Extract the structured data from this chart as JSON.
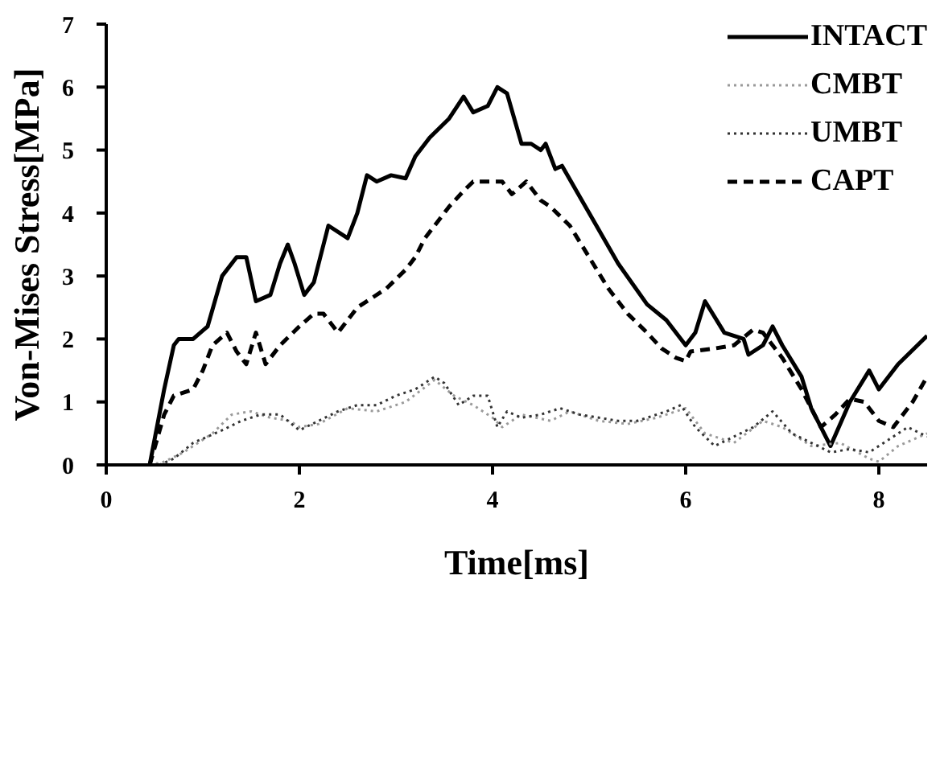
{
  "chart_data": {
    "type": "line",
    "xlabel": "Time[ms]",
    "ylabel": "Von-Mises Stress[MPa]",
    "xlim": [
      0,
      8.5
    ],
    "xticks": [
      0,
      2,
      4,
      6,
      8
    ],
    "ylim": [
      0,
      7
    ],
    "yticks": [
      0,
      1,
      2,
      3,
      4,
      5,
      6,
      7
    ],
    "legend": "top right",
    "marker": "none",
    "series": [
      {
        "name": "INTACT",
        "color": "#000000",
        "line_style": "solid",
        "x": [
          0.45,
          0.6,
          0.7,
          0.75,
          0.9,
          1.05,
          1.2,
          1.35,
          1.45,
          1.55,
          1.7,
          1.8,
          1.88,
          1.95,
          2.05,
          2.15,
          2.25,
          2.3,
          2.5,
          2.6,
          2.7,
          2.8,
          2.95,
          3.1,
          3.2,
          3.35,
          3.55,
          3.7,
          3.8,
          3.95,
          4.05,
          4.15,
          4.3,
          4.4,
          4.5,
          4.55,
          4.65,
          4.72,
          5.0,
          5.3,
          5.6,
          5.8,
          6.0,
          6.1,
          6.2,
          6.4,
          6.6,
          6.65,
          6.8,
          6.9,
          7.0,
          7.2,
          7.3,
          7.5,
          7.7,
          7.9,
          8.0,
          8.2,
          8.5
        ],
        "values": [
          0,
          1.2,
          1.9,
          2.0,
          2.0,
          2.2,
          3.0,
          3.3,
          3.3,
          2.6,
          2.7,
          3.2,
          3.5,
          3.2,
          2.7,
          2.9,
          3.5,
          3.8,
          3.6,
          4.0,
          4.6,
          4.5,
          4.6,
          4.55,
          4.9,
          5.2,
          5.5,
          5.85,
          5.6,
          5.7,
          6.0,
          5.9,
          5.1,
          5.1,
          5.0,
          5.1,
          4.7,
          4.75,
          4.0,
          3.2,
          2.55,
          2.3,
          1.9,
          2.1,
          2.6,
          2.1,
          2.0,
          1.75,
          1.9,
          2.2,
          1.9,
          1.4,
          0.9,
          0.3,
          1.0,
          1.5,
          1.2,
          1.6,
          2.05
        ]
      },
      {
        "name": "CMBT",
        "color": "#9a9a9a",
        "line_style": "dotted",
        "x": [
          0.45,
          0.6,
          0.8,
          1.1,
          1.3,
          1.5,
          1.7,
          1.9,
          2.0,
          2.2,
          2.5,
          2.8,
          3.1,
          3.4,
          3.6,
          3.8,
          4.0,
          4.1,
          4.3,
          4.6,
          4.8,
          5.1,
          5.4,
          5.7,
          6.0,
          6.2,
          6.5,
          6.8,
          7.0,
          7.3,
          7.6,
          7.9,
          8.0,
          8.2,
          8.5
        ],
        "values": [
          0,
          0.05,
          0.2,
          0.5,
          0.8,
          0.85,
          0.75,
          0.7,
          0.6,
          0.65,
          0.9,
          0.85,
          1.0,
          1.35,
          1.1,
          0.95,
          0.75,
          0.6,
          0.8,
          0.7,
          0.85,
          0.7,
          0.65,
          0.75,
          0.9,
          0.5,
          0.35,
          0.7,
          0.6,
          0.3,
          0.35,
          0.1,
          0.05,
          0.3,
          0.5
        ]
      },
      {
        "name": "UMBT",
        "color": "#333333",
        "line_style": "dotted",
        "x": [
          0.55,
          0.7,
          0.9,
          1.2,
          1.4,
          1.6,
          1.8,
          2.0,
          2.2,
          2.4,
          2.6,
          2.8,
          3.0,
          3.2,
          3.4,
          3.5,
          3.65,
          3.8,
          3.95,
          4.05,
          4.15,
          4.3,
          4.5,
          4.7,
          4.9,
          5.1,
          5.3,
          5.5,
          5.8,
          5.95,
          6.1,
          6.3,
          6.5,
          6.7,
          6.9,
          7.1,
          7.3,
          7.5,
          7.7,
          7.9,
          8.1,
          8.3,
          8.5
        ],
        "values": [
          0,
          0.1,
          0.35,
          0.55,
          0.7,
          0.8,
          0.8,
          0.55,
          0.7,
          0.85,
          0.95,
          0.95,
          1.1,
          1.2,
          1.4,
          1.3,
          0.95,
          1.1,
          1.1,
          0.6,
          0.85,
          0.75,
          0.8,
          0.9,
          0.8,
          0.75,
          0.7,
          0.7,
          0.85,
          0.95,
          0.6,
          0.3,
          0.45,
          0.6,
          0.85,
          0.5,
          0.35,
          0.2,
          0.25,
          0.2,
          0.4,
          0.6,
          0.45
        ]
      },
      {
        "name": "CAPT",
        "color": "#000000",
        "line_style": "dashed",
        "x": [
          0.45,
          0.6,
          0.7,
          0.9,
          1.0,
          1.1,
          1.25,
          1.35,
          1.45,
          1.55,
          1.65,
          1.8,
          2.0,
          2.15,
          2.25,
          2.4,
          2.6,
          2.9,
          3.1,
          3.2,
          3.3,
          3.4,
          3.55,
          3.7,
          3.8,
          4.1,
          4.2,
          4.35,
          4.5,
          4.6,
          4.8,
          5.0,
          5.2,
          5.4,
          5.6,
          5.75,
          5.9,
          6.0,
          6.05,
          6.3,
          6.5,
          6.7,
          6.8,
          7.0,
          7.2,
          7.4,
          7.55,
          7.7,
          7.85,
          8.0,
          8.15,
          8.35,
          8.5
        ],
        "values": [
          0,
          0.8,
          1.1,
          1.2,
          1.5,
          1.9,
          2.1,
          1.8,
          1.6,
          2.1,
          1.6,
          1.9,
          2.2,
          2.4,
          2.4,
          2.1,
          2.5,
          2.8,
          3.1,
          3.3,
          3.6,
          3.8,
          4.1,
          4.35,
          4.5,
          4.5,
          4.3,
          4.5,
          4.2,
          4.1,
          3.8,
          3.3,
          2.8,
          2.4,
          2.1,
          1.85,
          1.7,
          1.65,
          1.8,
          1.85,
          1.9,
          2.15,
          2.1,
          1.7,
          1.2,
          0.6,
          0.8,
          1.05,
          1.0,
          0.7,
          0.6,
          1.0,
          1.4
        ]
      }
    ]
  }
}
